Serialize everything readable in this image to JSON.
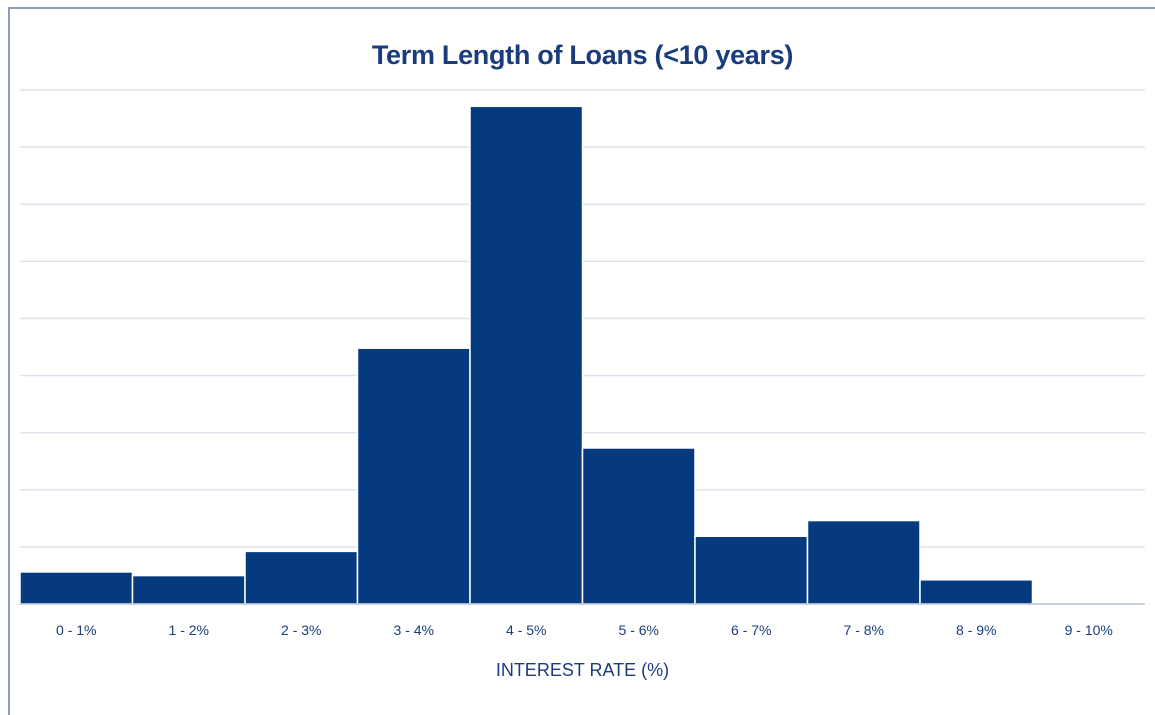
{
  "chart_data": {
    "type": "bar",
    "title": "Term Length of Loans (<10 years)",
    "xlabel": "INTEREST RATE (%)",
    "ylabel": "",
    "categories": [
      "0 - 1%",
      "1 - 2%",
      "2 - 3%",
      "3 - 4%",
      "4 - 5%",
      "5 - 6%",
      "6 - 7%",
      "7 - 8%",
      "8 - 9%",
      "9 - 10%"
    ],
    "values": [
      5.3,
      4.7,
      8.7,
      42.3,
      82.3,
      25.8,
      11.2,
      13.8,
      4.0,
      0.2
    ],
    "ylim": [
      0,
      85
    ],
    "grid": true,
    "y_tick_labels_shown": false,
    "colors": {
      "bar": "#063a7e",
      "bar_edge": "#ffffff",
      "grid": "#dde3ec",
      "baseline": "#b9c3d2",
      "text": "#1a3c7c"
    }
  }
}
